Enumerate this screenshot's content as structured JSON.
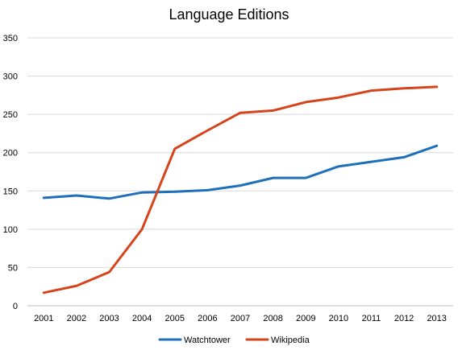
{
  "chart_data": {
    "type": "line",
    "title": "Language Editions",
    "xlabel": "",
    "ylabel": "",
    "categories": [
      "2001",
      "2002",
      "2003",
      "2004",
      "2005",
      "2006",
      "2007",
      "2008",
      "2009",
      "2010",
      "2011",
      "2012",
      "2013"
    ],
    "ylim": [
      0,
      350
    ],
    "yticks": [
      0,
      50,
      100,
      150,
      200,
      250,
      300,
      350
    ],
    "grid": true,
    "legend_position": "bottom",
    "series": [
      {
        "name": "Watchtower",
        "color": "#1f6fb9",
        "values": [
          141,
          144,
          140,
          148,
          149,
          151,
          157,
          167,
          167,
          182,
          188,
          194,
          209
        ]
      },
      {
        "name": "Wikipedia",
        "color": "#d6441b",
        "values": [
          17,
          26,
          44,
          100,
          205,
          229,
          252,
          255,
          266,
          272,
          281,
          284,
          286
        ]
      }
    ]
  }
}
